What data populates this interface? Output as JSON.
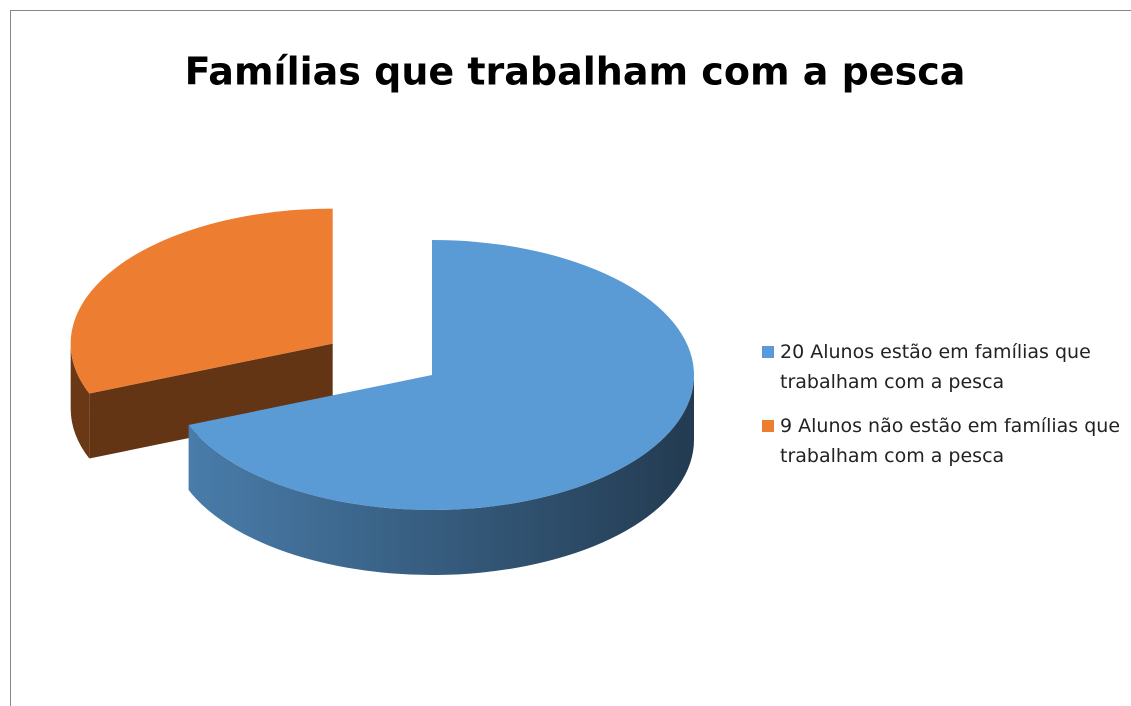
{
  "chart_data": {
    "type": "pie3d",
    "title": "Famílias que trabalham com a pesca",
    "categories": [
      "20 Alunos estão em famílias que trabalham com a pesca",
      "9 Alunos não estão em famílias que trabalham com a pesca"
    ],
    "values": [
      20,
      9
    ],
    "colors": [
      "#5b9bd5",
      "#ed7d31"
    ],
    "legend": "right"
  }
}
